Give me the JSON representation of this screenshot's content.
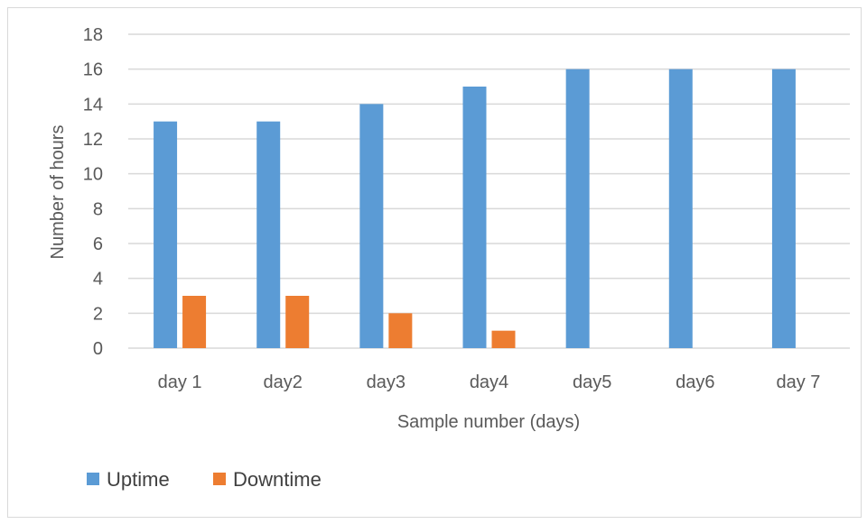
{
  "chart_data": {
    "type": "bar",
    "categories": [
      "day 1",
      "day2",
      "day3",
      "day4",
      "day5",
      "day6",
      "day 7"
    ],
    "series": [
      {
        "name": "Uptime",
        "color": "#5b9bd5",
        "values": [
          13,
          13,
          14,
          15,
          16,
          16,
          16
        ]
      },
      {
        "name": "Downtime",
        "color": "#ed7d31",
        "values": [
          3,
          3,
          2,
          1,
          0,
          0,
          0
        ]
      }
    ],
    "xlabel": "Sample number (days)",
    "ylabel": "Number of hours",
    "ylim": [
      0,
      18
    ],
    "yticks": [
      "0",
      "2",
      "4",
      "6",
      "8",
      "10",
      "12",
      "14",
      "16",
      "18"
    ],
    "grid": true,
    "legend_position": "bottom-left",
    "gridline_color": "#d9d9d9"
  }
}
